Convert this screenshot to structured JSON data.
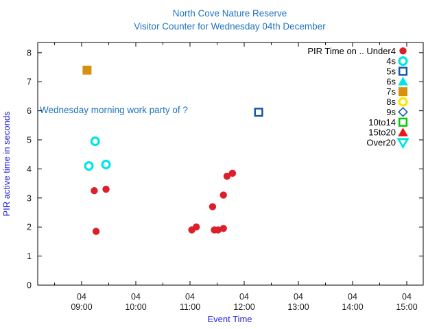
{
  "chart_data": {
    "type": "scatter",
    "title": "North Cove Nature Reserve",
    "subtitle": "Visitor Counter for Wednesday 04th December",
    "xlabel": "Event Time",
    "ylabel": "PIR active time in seconds",
    "annotation": {
      "text": "Wednesday morning work party of ?",
      "time": "08:13",
      "pir": 6.0
    },
    "x_axis": {
      "tick_day": "04",
      "tick_times": [
        "09:00",
        "10:00",
        "11:00",
        "12:00",
        "13:00",
        "14:00",
        "15:00"
      ],
      "minor_interval_minutes": 30,
      "range_hours": [
        8.19,
        15.3
      ]
    },
    "y_axis": {
      "ticks": [
        0,
        1,
        2,
        3,
        4,
        5,
        6,
        7,
        8
      ],
      "range": [
        0,
        8.35
      ]
    },
    "legend_title_prefix": "PIR Time on ..",
    "series": [
      {
        "name": "PIR Time on .. Under4",
        "marker": "filled-circle",
        "color": "#dc1f2a",
        "points": [
          {
            "time": "09:14",
            "pir": 3.25
          },
          {
            "time": "09:16",
            "pir": 1.85
          },
          {
            "time": "09:27",
            "pir": 3.3
          },
          {
            "time": "11:02",
            "pir": 1.9
          },
          {
            "time": "11:07",
            "pir": 2.0
          },
          {
            "time": "11:25",
            "pir": 2.7
          },
          {
            "time": "11:27",
            "pir": 1.9
          },
          {
            "time": "11:31",
            "pir": 1.9
          },
          {
            "time": "11:37",
            "pir": 1.95
          },
          {
            "time": "11:37",
            "pir": 3.1
          },
          {
            "time": "11:41",
            "pir": 3.75
          },
          {
            "time": "11:47",
            "pir": 3.85
          }
        ]
      },
      {
        "name": "4s",
        "marker": "open-circle",
        "color": "#00e5e5",
        "points": [
          {
            "time": "09:08",
            "pir": 4.1
          },
          {
            "time": "09:15",
            "pir": 4.95
          },
          {
            "time": "09:27",
            "pir": 4.15
          }
        ]
      },
      {
        "name": "5s",
        "marker": "open-square",
        "color": "#1459a8",
        "points": [
          {
            "time": "12:16",
            "pir": 5.95
          }
        ]
      },
      {
        "name": "6s",
        "marker": "filled-triangle-up",
        "color": "#00e5e5",
        "points": []
      },
      {
        "name": "7s",
        "marker": "filled-square",
        "color": "#d6910e",
        "points": [
          {
            "time": "09:06",
            "pir": 7.4
          }
        ]
      },
      {
        "name": "8s",
        "marker": "open-circle",
        "color": "#ffe400",
        "points": []
      },
      {
        "name": "9s",
        "marker": "open-diamond",
        "color": "#1459a8",
        "points": []
      },
      {
        "name": "10to14",
        "marker": "open-square",
        "color": "#00cc00",
        "points": []
      },
      {
        "name": "15to20",
        "marker": "filled-triangle-up",
        "color": "#f01414",
        "points": []
      },
      {
        "name": "Over20",
        "marker": "open-triangle-down",
        "color": "#00e5e5",
        "points": []
      }
    ],
    "legend_position": "top-right",
    "grid": false,
    "colors": {
      "title": "#1e73be",
      "axis_label": "#2222dd",
      "annotation": "#1e73be",
      "tick_label": "#1a1a1a",
      "border": "#000000",
      "background": "#ffffff"
    }
  }
}
